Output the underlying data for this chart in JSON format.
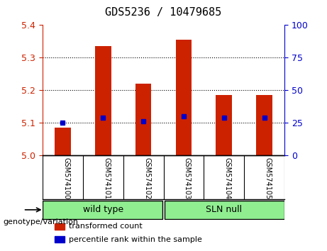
{
  "title": "GDS5236 / 10479685",
  "categories": [
    "GSM574100",
    "GSM574101",
    "GSM574102",
    "GSM574103",
    "GSM574104",
    "GSM574105"
  ],
  "red_values": [
    5.085,
    5.335,
    5.22,
    5.355,
    5.185,
    5.185
  ],
  "blue_values": [
    5.1,
    5.115,
    5.105,
    5.12,
    5.115,
    5.115
  ],
  "ylim_left": [
    5.0,
    5.4
  ],
  "yticks_left": [
    5.0,
    5.1,
    5.2,
    5.3,
    5.4
  ],
  "yticks_right": [
    0,
    25,
    50,
    75,
    100
  ],
  "ylim_right": [
    0,
    100
  ],
  "left_color": "#cc2200",
  "right_color": "#0000cc",
  "bar_color": "#cc2200",
  "dot_color": "#0000cc",
  "groups": [
    {
      "label": "wild type",
      "color": "#90ee90"
    },
    {
      "label": "SLN null",
      "color": "#90ee90"
    }
  ],
  "group_label": "genotype/variation",
  "legend_items": [
    {
      "color": "#cc2200",
      "label": "transformed count"
    },
    {
      "color": "#0000cc",
      "label": "percentile rank within the sample"
    }
  ],
  "xlabel_area_color": "#c8c8c8",
  "background_color": "white"
}
